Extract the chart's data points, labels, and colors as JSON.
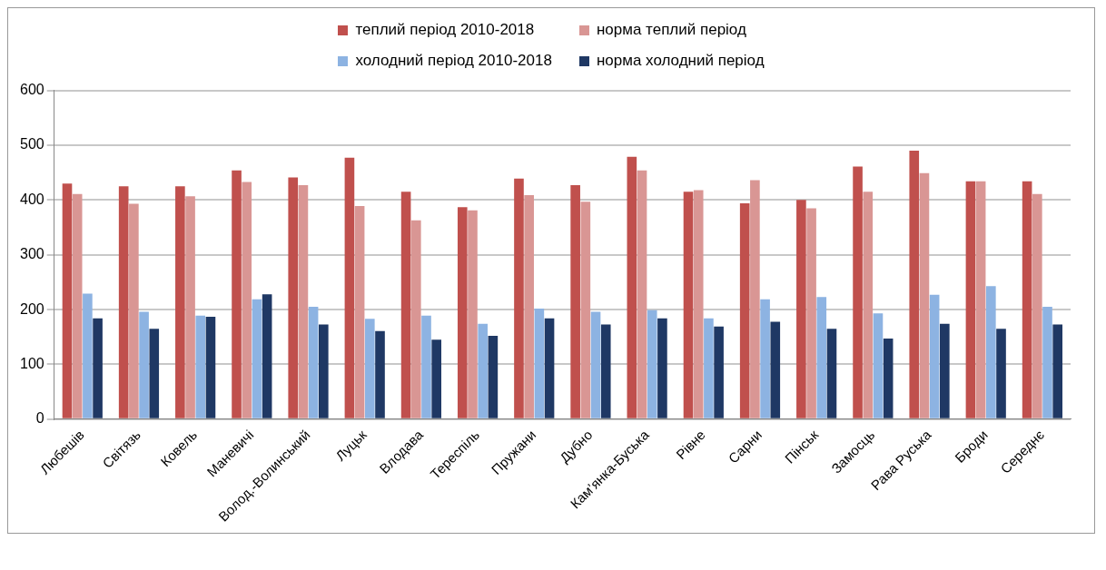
{
  "chart_data": {
    "type": "bar",
    "categories": [
      "Любешів",
      "Світязь",
      "Ковель",
      "Маневичі",
      "Волод.-Волинський",
      "Луцьк",
      "Влодава",
      "Тереспіль",
      "Пружани",
      "Дубно",
      "Кам’янка-Буська",
      "Рівне",
      "Сарни",
      "Пінськ",
      "Замосць",
      "Рава Руська",
      "Броди",
      "Середнє"
    ],
    "series": [
      {
        "name": "теплий період 2010-2018",
        "color": "#c0504d",
        "values": [
          430,
          425,
          425,
          454,
          441,
          477,
          415,
          387,
          439,
          427,
          479,
          415,
          394,
          400,
          461,
          490,
          434,
          434
        ]
      },
      {
        "name": "норма теплий період",
        "color": "#d99694",
        "values": [
          411,
          393,
          407,
          433,
          427,
          389,
          363,
          381,
          409,
          397,
          454,
          418,
          436,
          385,
          415,
          449,
          434,
          411
        ]
      },
      {
        "name": "холодний період 2010-2018",
        "color": "#8db3e2",
        "values": [
          229,
          196,
          189,
          219,
          205,
          183,
          189,
          174,
          202,
          196,
          199,
          184,
          219,
          223,
          193,
          227,
          243,
          205
        ]
      },
      {
        "name": "норма холодний період",
        "color": "#1f3864",
        "values": [
          184,
          165,
          187,
          228,
          173,
          161,
          145,
          152,
          184,
          173,
          184,
          169,
          178,
          165,
          147,
          174,
          165,
          173
        ]
      }
    ],
    "ylim": [
      0,
      600
    ],
    "yticks": [
      0,
      100,
      200,
      300,
      400,
      500,
      600
    ],
    "grid": "y",
    "legend": "top"
  }
}
